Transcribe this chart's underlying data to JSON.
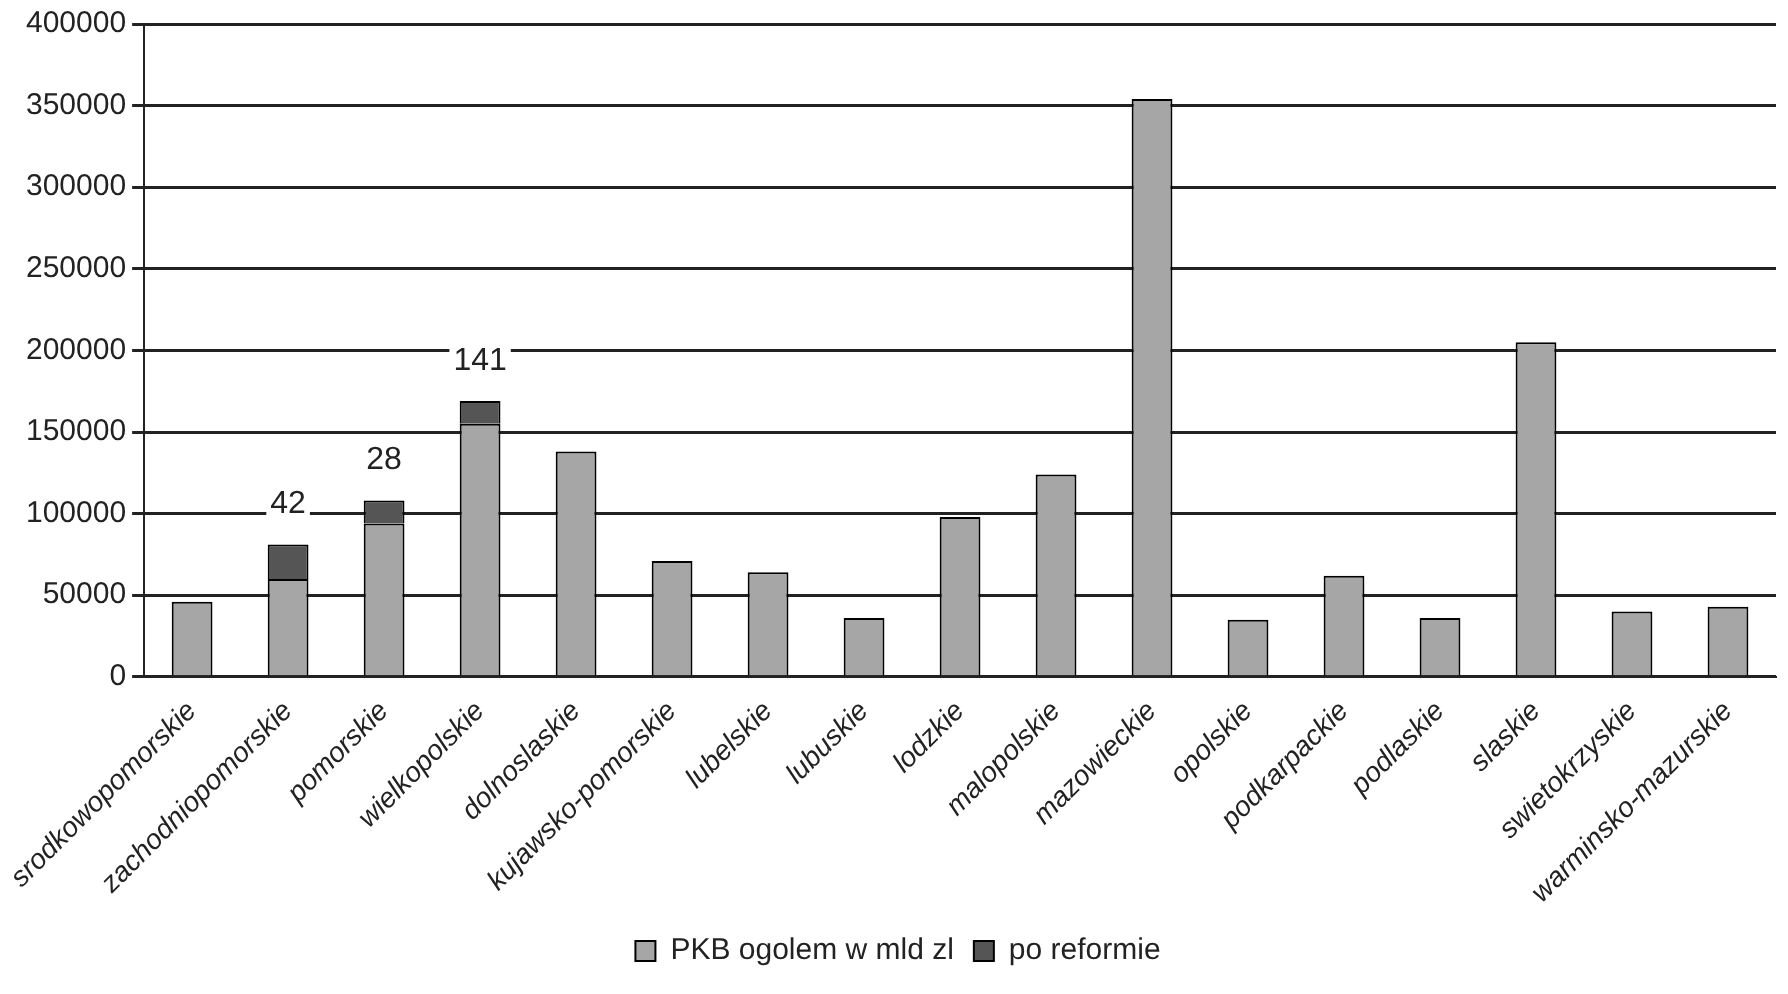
{
  "chart_data": {
    "type": "bar",
    "stacked": true,
    "categories": [
      "srodkowopomorskie",
      "zachodniopomorskie",
      "pomorskie",
      "wielkopolskie",
      "dolnoslaskie",
      "kujawsko-pomorskie",
      "lubelskie",
      "lubuskie",
      "lodzkie",
      "malopolskie",
      "mazowieckie",
      "opolskie",
      "podkarpackie",
      "podlaskie",
      "slaskie",
      "swietokrzyskie",
      "warminsko-mazurskie"
    ],
    "series": [
      {
        "name": "PKB ogolem w mld zl",
        "color": "#a6a6a6",
        "values": [
          46000,
          60000,
          94000,
          155000,
          138000,
          71000,
          64000,
          36000,
          98000,
          124000,
          354000,
          35000,
          62000,
          36000,
          205000,
          40000,
          43000
        ]
      },
      {
        "name": "po reformie",
        "color": "#555555",
        "values": [
          null,
          21000,
          14000,
          14000,
          null,
          null,
          null,
          null,
          null,
          null,
          null,
          null,
          null,
          null,
          null,
          null,
          null
        ]
      }
    ],
    "annotations": [
      {
        "text": "42",
        "x": "zachodniopomorskie",
        "y": 81000
      },
      {
        "text": "28",
        "x": "pomorskie",
        "y": 108000
      },
      {
        "text": "141",
        "x": "wielkopolskie",
        "y": 169000
      }
    ],
    "ylim": [
      0,
      400000
    ],
    "yticks": [
      0,
      50000,
      100000,
      150000,
      200000,
      250000,
      300000,
      350000,
      400000
    ],
    "grid": "y",
    "legend": "bottom"
  }
}
